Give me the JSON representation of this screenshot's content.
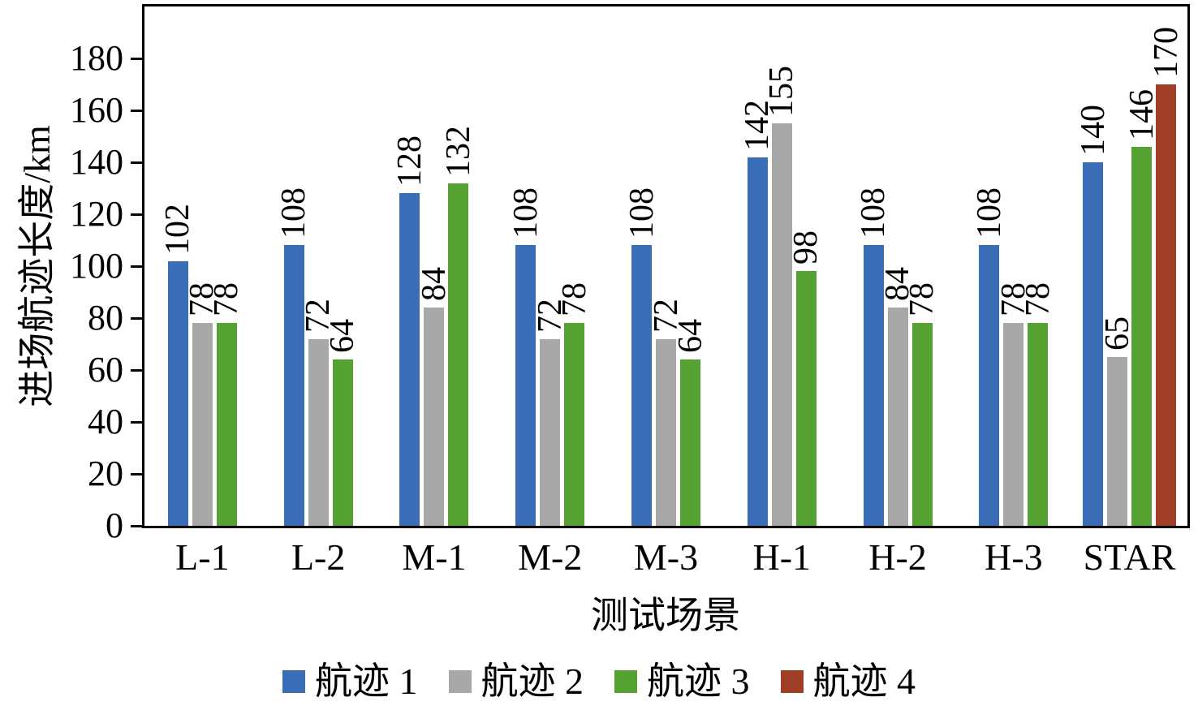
{
  "chart_data": {
    "type": "bar",
    "title": "",
    "xlabel": "测试场景",
    "ylabel": "进场航迹长度/km",
    "categories": [
      "L-1",
      "L-2",
      "M-1",
      "M-2",
      "M-3",
      "H-1",
      "H-2",
      "H-3",
      "STAR"
    ],
    "series": [
      {
        "name": "航迹 1",
        "color": "#3A6DB5",
        "values": [
          102,
          108,
          128,
          108,
          108,
          142,
          108,
          108,
          140
        ]
      },
      {
        "name": "航迹 2",
        "color": "#A8A8A8",
        "values": [
          78,
          72,
          84,
          72,
          72,
          155,
          84,
          78,
          65
        ]
      },
      {
        "name": "航迹 3",
        "color": "#55A233",
        "values": [
          78,
          64,
          132,
          78,
          64,
          98,
          78,
          78,
          146
        ]
      },
      {
        "name": "航迹 4",
        "color": "#A03E27",
        "values": [
          null,
          null,
          null,
          null,
          null,
          null,
          null,
          null,
          170
        ]
      }
    ],
    "ylim": [
      0,
      200
    ],
    "yticks": [
      0,
      20,
      40,
      60,
      80,
      100,
      120,
      140,
      160,
      180
    ],
    "grid": false,
    "legend_position": "bottom",
    "value_labels_rotation": 90
  }
}
